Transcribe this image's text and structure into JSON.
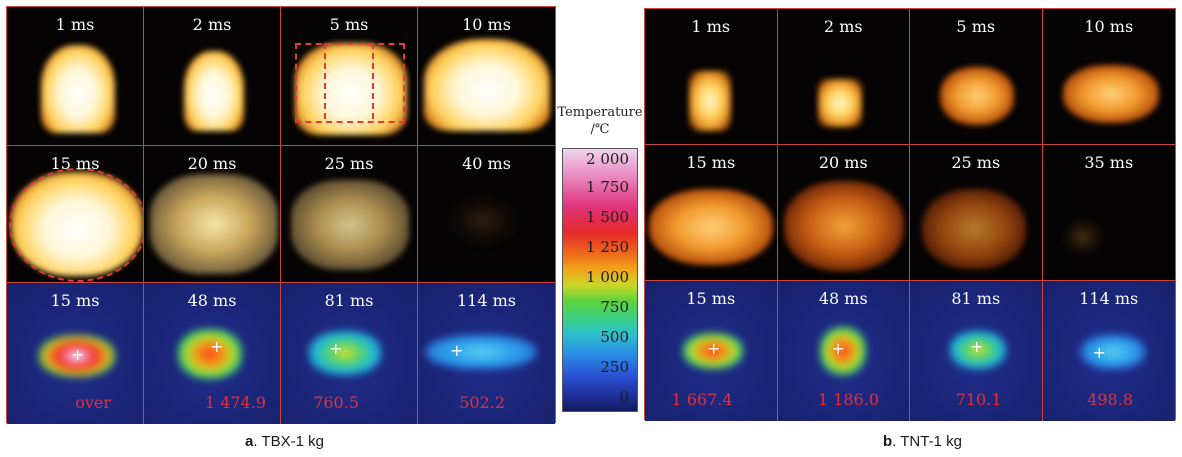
{
  "panel_a": {
    "caption_letter": "a",
    "caption_text": ". TBX-1 kg",
    "row1_times": [
      "1 ms",
      "2 ms",
      "5 ms",
      "10 ms"
    ],
    "row2_times": [
      "15 ms",
      "20 ms",
      "25 ms",
      "40 ms"
    ],
    "row3_times": [
      "15 ms",
      "48 ms",
      "81 ms",
      "114 ms"
    ],
    "row3_values": [
      "over",
      "1 474.9",
      "760.5",
      "502.2"
    ]
  },
  "panel_b": {
    "caption_letter": "b",
    "caption_text": ". TNT-1 kg",
    "row1_times": [
      "1 ms",
      "2 ms",
      "5 ms",
      "10 ms"
    ],
    "row2_times": [
      "15 ms",
      "20 ms",
      "25 ms",
      "35 ms"
    ],
    "row3_times": [
      "15 ms",
      "48 ms",
      "81 ms",
      "114 ms"
    ],
    "row3_values": [
      "1 667.4",
      "1 186.0",
      "710.1",
      "498.8"
    ]
  },
  "colorbar": {
    "title_line1": "Temperature",
    "title_line2": "/℃",
    "ticks": [
      "2 000",
      "1 750",
      "1 500",
      "1 250",
      "1 000",
      "750",
      "500",
      "250",
      "0"
    ]
  },
  "colors": {
    "grid_border": "#c9463f",
    "temp_value_text": "#e0313a"
  }
}
